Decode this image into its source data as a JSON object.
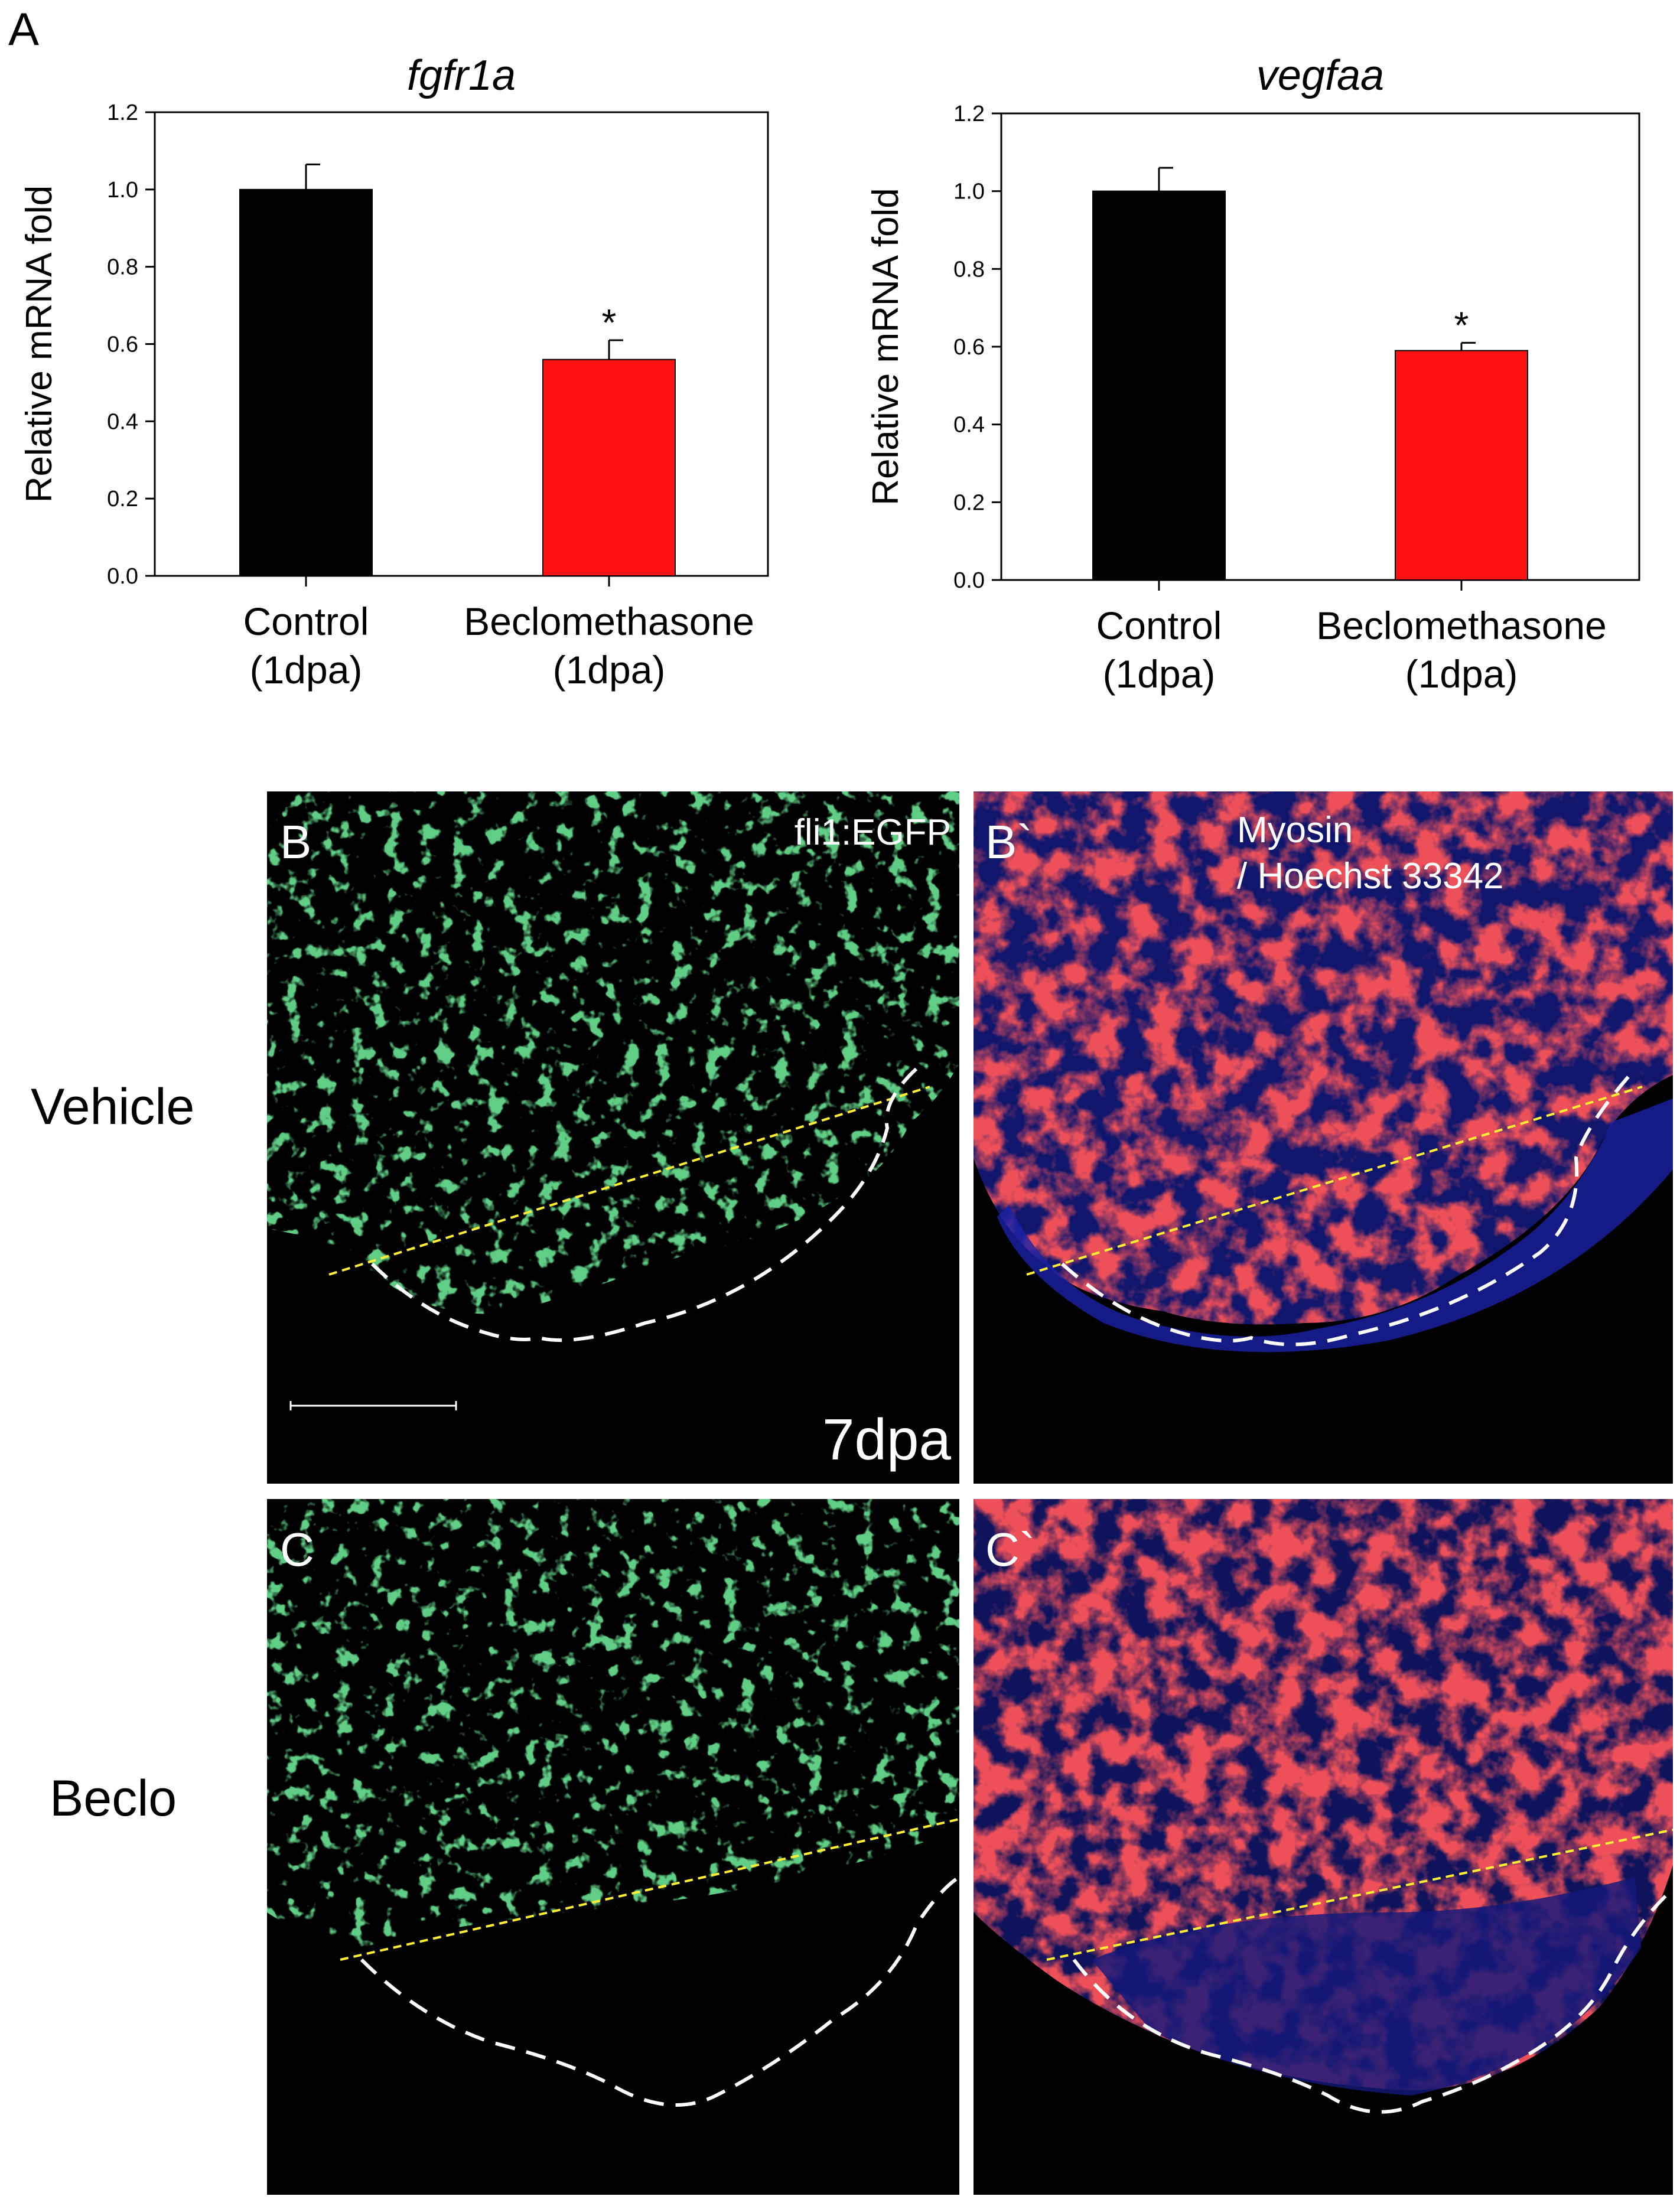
{
  "figure": {
    "panel_a_letter": "A",
    "colors": {
      "control_bar": "#000000",
      "treatment_bar": "#ff1111",
      "vessel_green": "#1f9a3a",
      "myosin_red": "#d81414",
      "nuclei_blue": "#1a22a8",
      "dashed_outline": "#ffffff",
      "amputation_line": "#ffee33"
    }
  },
  "chart_data": [
    {
      "type": "bar",
      "title": "fgfr1a",
      "ylabel": "Relative mRNA fold",
      "xlabel": "",
      "ylim": [
        0,
        1.2
      ],
      "yticks": [
        "0.0",
        "0.2",
        "0.4",
        "0.6",
        "0.8",
        "1.0",
        "1.2"
      ],
      "categories": [
        {
          "line1": "Control",
          "line2": "(1dpa)"
        },
        {
          "line1": "Beclomethasone",
          "line2": "(1dpa)"
        }
      ],
      "values": [
        1.0,
        0.56
      ],
      "errors": [
        0.065,
        0.05
      ],
      "significance": [
        "",
        "*"
      ],
      "grid": false
    },
    {
      "type": "bar",
      "title": "vegfaa",
      "ylabel": "Relative mRNA fold",
      "xlabel": "",
      "ylim": [
        0,
        1.2
      ],
      "yticks": [
        "0.0",
        "0.2",
        "0.4",
        "0.6",
        "0.8",
        "1.0",
        "1.2"
      ],
      "categories": [
        {
          "line1": "Control",
          "line2": "(1dpa)"
        },
        {
          "line1": "Beclomethasone",
          "line2": "(1dpa)"
        }
      ],
      "values": [
        1.0,
        0.59
      ],
      "errors": [
        0.06,
        0.02
      ],
      "significance": [
        "",
        "*"
      ],
      "grid": false
    }
  ],
  "micrographs": {
    "row_labels": [
      "Vehicle",
      "Beclo"
    ],
    "panels": [
      {
        "letter": "B",
        "stain": "fli1:EGFP",
        "timepoint": "7dpa"
      },
      {
        "letter": "B`",
        "stain_line1": "Myosin",
        "stain_line2": "/ Hoechst 33342"
      },
      {
        "letter": "C"
      },
      {
        "letter": "C`"
      }
    ]
  }
}
